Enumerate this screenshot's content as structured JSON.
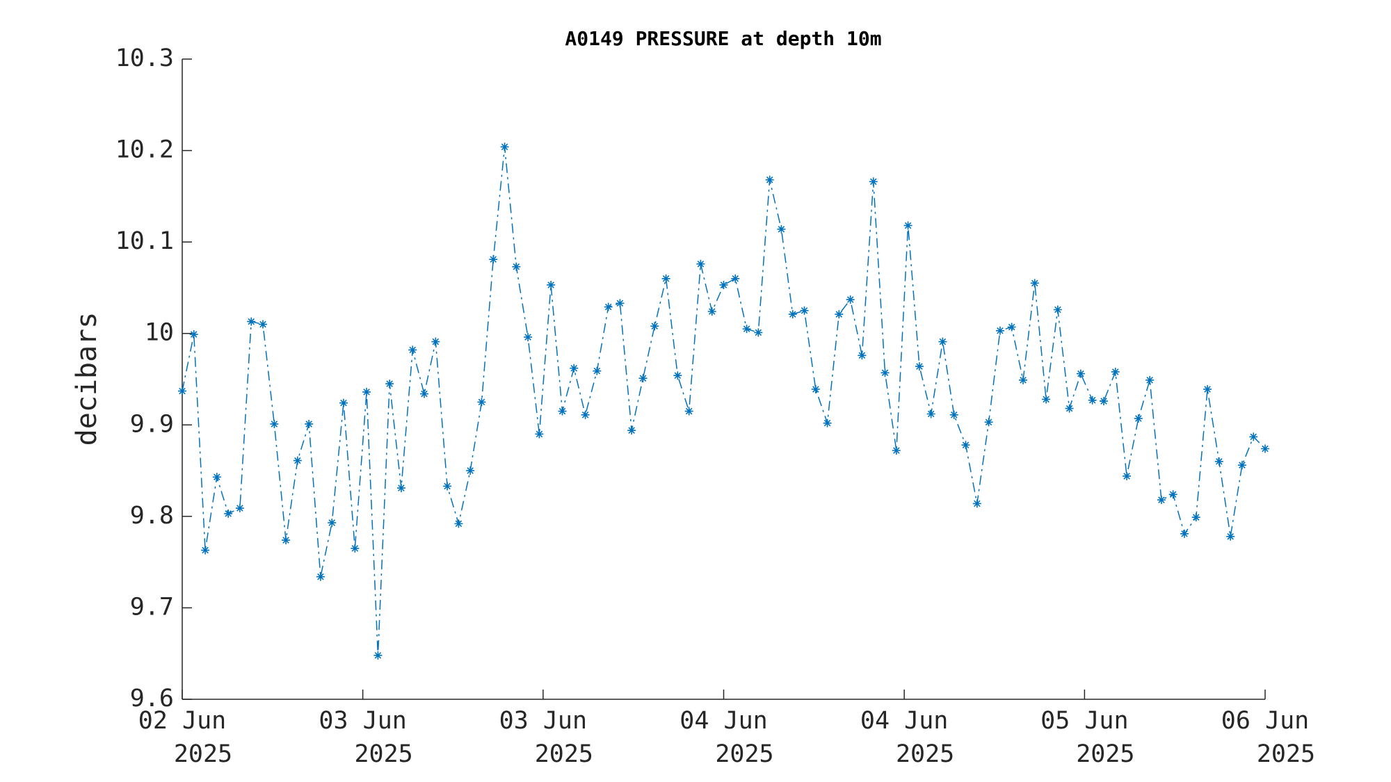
{
  "chart_data": {
    "type": "line",
    "title": "A0149 PRESSURE at depth 10m",
    "y_label": "decibars",
    "x": [
      0,
      0.043,
      0.085,
      0.128,
      0.17,
      0.213,
      0.255,
      0.298,
      0.34,
      0.383,
      0.426,
      0.468,
      0.511,
      0.553,
      0.596,
      0.638,
      0.681,
      0.723,
      0.766,
      0.809,
      0.851,
      0.894,
      0.936,
      0.979,
      1.021,
      1.064,
      1.106,
      1.149,
      1.191,
      1.234,
      1.277,
      1.319,
      1.362,
      1.404,
      1.447,
      1.489,
      1.532,
      1.574,
      1.617,
      1.66,
      1.702,
      1.745,
      1.787,
      1.83,
      1.872,
      1.915,
      1.957,
      2.0,
      2.043,
      2.085,
      2.128,
      2.17,
      2.213,
      2.255,
      2.298,
      2.34,
      2.383,
      2.426,
      2.468,
      2.511,
      2.553,
      2.596,
      2.638,
      2.681,
      2.723,
      2.766,
      2.809,
      2.851,
      2.894,
      2.936,
      2.979,
      3.021,
      3.064,
      3.106,
      3.149,
      3.191,
      3.234,
      3.277,
      3.319,
      3.362,
      3.404,
      3.447,
      3.489,
      3.532,
      3.574,
      3.617,
      3.66,
      3.702,
      3.745,
      3.787,
      3.83,
      3.872,
      3.915,
      3.957,
      4.0
    ],
    "series": [
      {
        "name": "A0149 PRESSURE",
        "color": "#0072bd",
        "values": [
          9.937,
          9.999,
          9.763,
          9.843,
          9.803,
          9.809,
          10.013,
          10.01,
          9.901,
          9.774,
          9.861,
          9.901,
          9.734,
          9.793,
          9.924,
          9.765,
          9.936,
          9.648,
          9.945,
          9.831,
          9.982,
          9.934,
          9.991,
          9.833,
          9.792,
          9.85,
          9.925,
          10.081,
          10.204,
          10.073,
          9.996,
          9.89,
          10.053,
          9.915,
          9.962,
          9.911,
          9.959,
          10.029,
          10.033,
          9.894,
          9.951,
          10.008,
          10.06,
          9.954,
          9.915,
          10.076,
          10.024,
          10.053,
          10.06,
          10.005,
          10.001,
          10.168,
          10.114,
          10.021,
          10.025,
          9.939,
          9.902,
          10.021,
          10.037,
          9.976,
          10.166,
          9.957,
          9.872,
          10.118,
          9.964,
          9.912,
          9.991,
          9.911,
          9.878,
          9.814,
          9.903,
          10.003,
          10.007,
          9.949,
          10.055,
          9.928,
          10.026,
          9.918,
          9.956,
          9.927,
          9.926,
          9.958,
          9.844,
          9.907,
          9.949,
          9.818,
          9.824,
          9.781,
          9.799,
          9.939,
          9.86,
          9.778,
          9.856,
          9.887,
          9.874
        ]
      }
    ],
    "xlim": [
      0,
      4
    ],
    "xticks": [
      {
        "value": 0,
        "label": [
          "02 Jun",
          "2025"
        ]
      },
      {
        "value": 0.667,
        "label": [
          "03 Jun",
          "2025"
        ]
      },
      {
        "value": 1.333,
        "label": [
          "03 Jun",
          "2025"
        ]
      },
      {
        "value": 2,
        "label": [
          "04 Jun",
          "2025"
        ]
      },
      {
        "value": 2.667,
        "label": [
          "04 Jun",
          "2025"
        ]
      },
      {
        "value": 3.333,
        "label": [
          "05 Jun",
          "2025"
        ]
      },
      {
        "value": 4,
        "label": [
          "06 Jun",
          "2025"
        ]
      }
    ],
    "ylim": [
      9.6,
      10.3
    ],
    "yticks": [
      9.6,
      9.7,
      9.8,
      9.9,
      10,
      10.1,
      10.2,
      10.3
    ],
    "grid": false,
    "marker": "*",
    "line_style": "dashdot"
  }
}
